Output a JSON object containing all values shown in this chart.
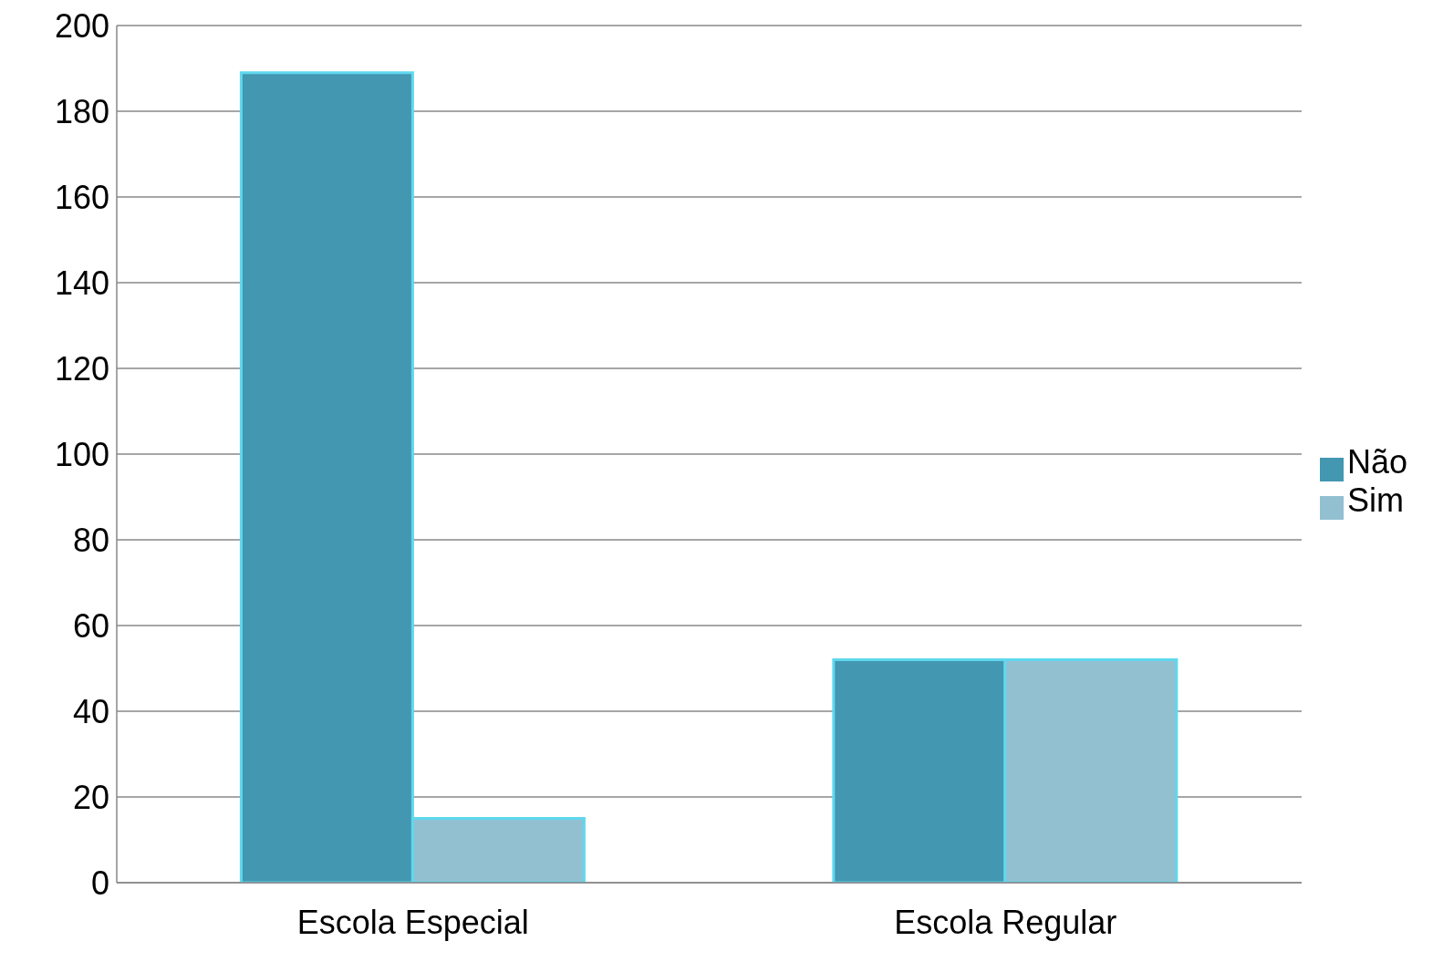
{
  "chart_data": {
    "type": "bar",
    "categories": [
      "Escola Especial",
      "Escola Regular"
    ],
    "series": [
      {
        "name": "Não",
        "color": "#4397b0",
        "values": [
          189,
          52
        ]
      },
      {
        "name": "Sim",
        "color": "#92c0d0",
        "values": [
          15,
          52
        ]
      }
    ],
    "ylim": [
      0,
      200
    ],
    "yticks": [
      0,
      20,
      40,
      60,
      80,
      100,
      120,
      140,
      160,
      180,
      200
    ],
    "grid": "y",
    "legend": "right"
  }
}
